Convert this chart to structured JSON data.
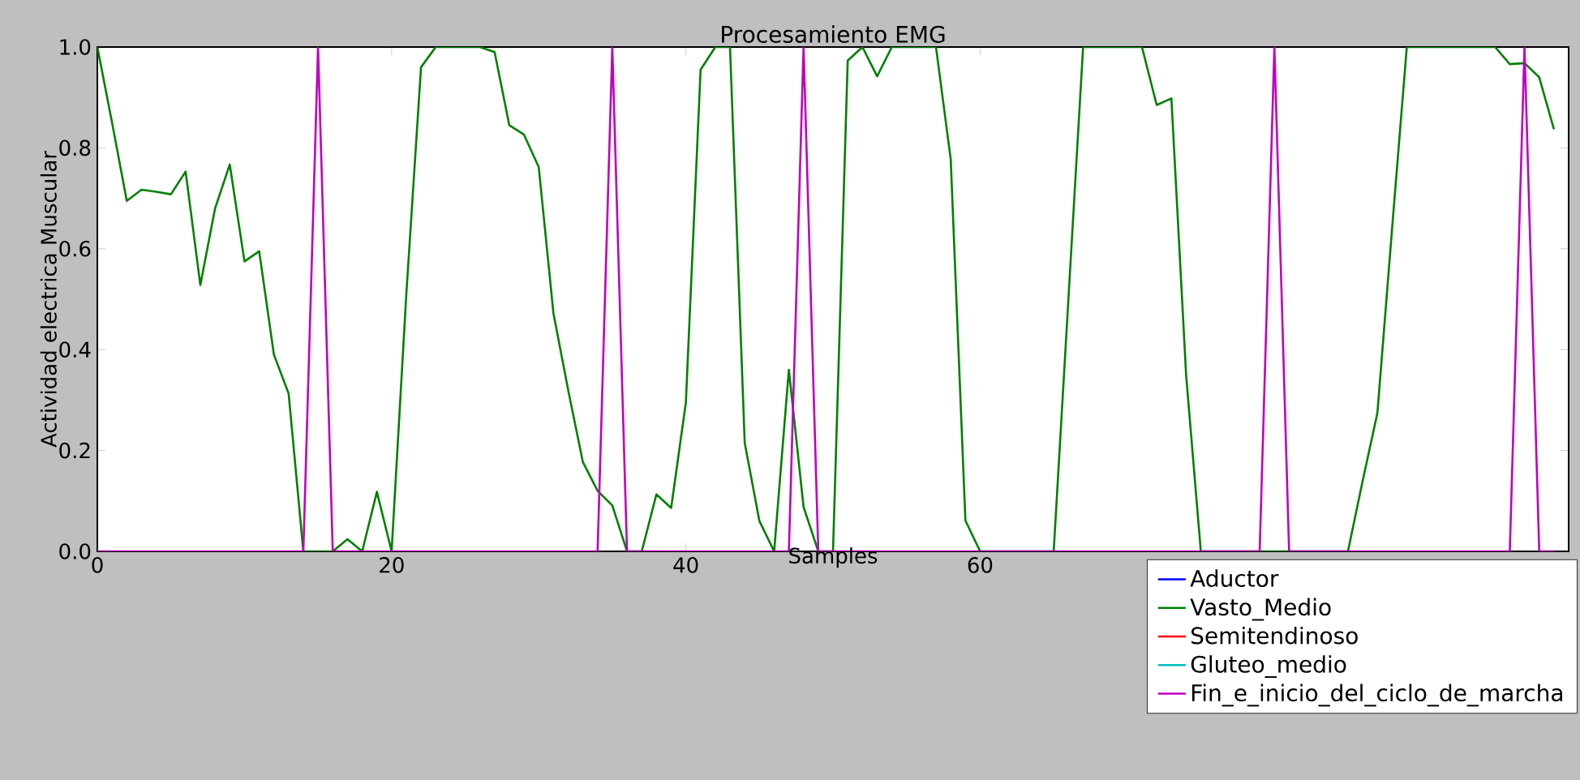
{
  "chart_data": {
    "type": "line",
    "title": "Procesamiento EMG",
    "xlabel": "Samples",
    "ylabel": "Actividad electrica Muscular",
    "x": [
      0,
      1,
      2,
      3,
      4,
      5,
      6,
      7,
      8,
      9,
      10,
      11,
      12,
      13,
      14,
      15,
      16,
      17,
      18,
      19,
      20,
      21,
      22,
      23,
      24,
      25,
      26,
      27,
      28,
      29,
      30,
      31,
      32,
      33,
      34,
      35,
      36,
      37,
      38,
      39,
      40,
      41,
      42,
      43,
      44,
      45,
      46,
      47,
      48,
      49,
      50,
      51,
      52,
      53,
      54,
      55,
      56,
      57,
      58,
      59,
      60,
      61,
      62,
      63,
      64,
      65,
      66,
      67,
      68,
      69,
      70,
      71,
      72,
      73,
      74,
      75,
      76,
      77,
      78,
      79,
      80,
      81,
      82,
      83,
      84,
      85,
      86,
      87,
      88,
      89,
      90,
      91,
      92,
      93,
      94,
      95,
      96,
      97,
      98,
      99
    ],
    "series": [
      {
        "name": "Aductor",
        "color": "#0000ff",
        "values": [
          null,
          null,
          null,
          null,
          null,
          null,
          null,
          null,
          null,
          null,
          null,
          null,
          null,
          null,
          null,
          null,
          null,
          null,
          null,
          null,
          null,
          null,
          null,
          null,
          null,
          null,
          null,
          null,
          null,
          null,
          null,
          null,
          null,
          null,
          null,
          null,
          null,
          null,
          null,
          null,
          null,
          null,
          null,
          null,
          null,
          null,
          null,
          null,
          null,
          null,
          null,
          null,
          null,
          null,
          null,
          null,
          null,
          null,
          null,
          null,
          null,
          null,
          null,
          null,
          null,
          null,
          null,
          null,
          null,
          null,
          null,
          null,
          null,
          null,
          null,
          null,
          null,
          null,
          null,
          null,
          null,
          null,
          null,
          null,
          null,
          null,
          null,
          null,
          null,
          null,
          null,
          null,
          null,
          null,
          null,
          null,
          null,
          null,
          null,
          null
        ]
      },
      {
        "name": "Vasto_Medio",
        "color": "#008000",
        "values": [
          1.0,
          0.85,
          0.695,
          0.717,
          0.713,
          0.708,
          0.753,
          0.528,
          0.68,
          0.767,
          0.575,
          0.595,
          0.39,
          0.313,
          0,
          0,
          0,
          0.024,
          0,
          0.118,
          0,
          0.51,
          0.96,
          1.0,
          1.0,
          1.0,
          1.0,
          0.99,
          0.845,
          0.826,
          0.762,
          0.472,
          0.32,
          0.177,
          0.12,
          0.091,
          0,
          0,
          0.113,
          0.086,
          0.295,
          0.955,
          1.0,
          1.0,
          0.215,
          0.06,
          0,
          0.36,
          0.088,
          0,
          0,
          0.973,
          1.0,
          0.942,
          1.0,
          1.0,
          1.0,
          1.0,
          0.778,
          0.061,
          0,
          0,
          0,
          0,
          0,
          0,
          0.5,
          1.0,
          1.0,
          1.0,
          1.0,
          1.0,
          0.885,
          0.898,
          0.35,
          0,
          0,
          0,
          0,
          0,
          0,
          0,
          0,
          0,
          0,
          0,
          0.14,
          0.274,
          0.64,
          1.0,
          1.0,
          1.0,
          1.0,
          1.0,
          1.0,
          1.0,
          0.966,
          0.968,
          0.94,
          0.837
        ]
      },
      {
        "name": "Semitendinoso",
        "color": "#ff0000",
        "values": [
          null,
          null,
          null,
          null,
          null,
          null,
          null,
          null,
          null,
          null,
          null,
          null,
          null,
          null,
          null,
          null,
          null,
          null,
          null,
          null,
          null,
          null,
          null,
          null,
          null,
          null,
          null,
          null,
          null,
          null,
          null,
          null,
          null,
          null,
          null,
          null,
          null,
          null,
          null,
          null,
          null,
          null,
          null,
          null,
          null,
          null,
          null,
          null,
          null,
          null,
          null,
          null,
          null,
          null,
          null,
          null,
          null,
          null,
          null,
          null,
          null,
          null,
          null,
          null,
          null,
          null,
          null,
          null,
          null,
          null,
          null,
          null,
          null,
          null,
          null,
          null,
          null,
          null,
          null,
          null,
          null,
          null,
          null,
          null,
          null,
          null,
          null,
          null,
          null,
          null,
          null,
          null,
          null,
          null,
          null,
          null,
          null,
          null,
          null,
          null
        ]
      },
      {
        "name": "Gluteo_medio",
        "color": "#00bfbf",
        "values": [
          null,
          null,
          null,
          null,
          null,
          null,
          null,
          null,
          null,
          null,
          null,
          null,
          null,
          null,
          null,
          null,
          null,
          null,
          null,
          null,
          null,
          null,
          null,
          null,
          null,
          null,
          null,
          null,
          null,
          null,
          null,
          null,
          null,
          null,
          null,
          null,
          null,
          null,
          null,
          null,
          null,
          null,
          null,
          null,
          null,
          null,
          null,
          null,
          null,
          null,
          null,
          null,
          null,
          null,
          null,
          null,
          null,
          null,
          null,
          null,
          null,
          null,
          null,
          null,
          null,
          null,
          null,
          null,
          null,
          null,
          null,
          null,
          null,
          null,
          null,
          null,
          null,
          null,
          null,
          null,
          null,
          null,
          null,
          null,
          null,
          null,
          null,
          null,
          null,
          null,
          null,
          null,
          null,
          null,
          null,
          null,
          null,
          null,
          null,
          null
        ]
      },
      {
        "name": "Fin_e_inicio_del_ciclo_de_marcha",
        "color": "#bf00bf",
        "values": [
          0,
          0,
          0,
          0,
          0,
          0,
          0,
          0,
          0,
          0,
          0,
          0,
          0,
          0,
          0,
          1,
          0,
          0,
          0,
          0,
          0,
          0,
          0,
          0,
          0,
          0,
          0,
          0,
          0,
          0,
          0,
          0,
          0,
          0,
          0,
          1,
          0,
          0,
          0,
          0,
          0,
          0,
          0,
          0,
          0,
          0,
          0,
          0,
          1,
          0,
          0,
          0,
          0,
          0,
          0,
          0,
          0,
          0,
          0,
          0,
          0,
          0,
          0,
          0,
          0,
          0,
          0,
          0,
          0,
          0,
          0,
          0,
          0,
          0,
          0,
          0,
          0,
          0,
          0,
          0,
          1,
          0,
          0,
          0,
          0,
          0,
          0,
          0,
          0,
          0,
          0,
          0,
          0,
          0,
          0,
          0,
          0,
          1,
          0,
          0
        ]
      }
    ],
    "xlim": [
      0,
      100
    ],
    "ylim": [
      0,
      1.0
    ],
    "xticks": [
      0,
      20,
      40,
      60
    ],
    "yticks": [
      {
        "value": 0,
        "label": "0.0"
      },
      {
        "value": 0.2,
        "label": "0.2"
      },
      {
        "value": 0.4,
        "label": "0.4"
      },
      {
        "value": 0.6,
        "label": "0.6"
      },
      {
        "value": 0.8,
        "label": "0.8"
      },
      {
        "value": 1.0,
        "label": "1.0"
      }
    ],
    "grid": false,
    "legend": "bottom right",
    "marker": "none",
    "line_style": "solid"
  }
}
